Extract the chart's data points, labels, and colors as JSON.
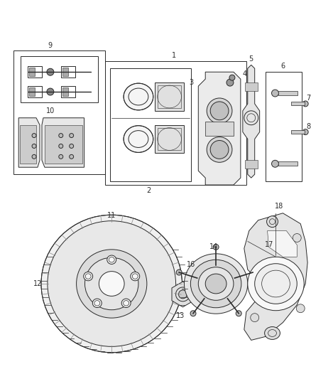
{
  "background_color": "#ffffff",
  "line_color": "#2a2a2a",
  "fig_width": 4.38,
  "fig_height": 5.33,
  "dpi": 100,
  "label_fontsize": 7.0,
  "lw": 0.7
}
